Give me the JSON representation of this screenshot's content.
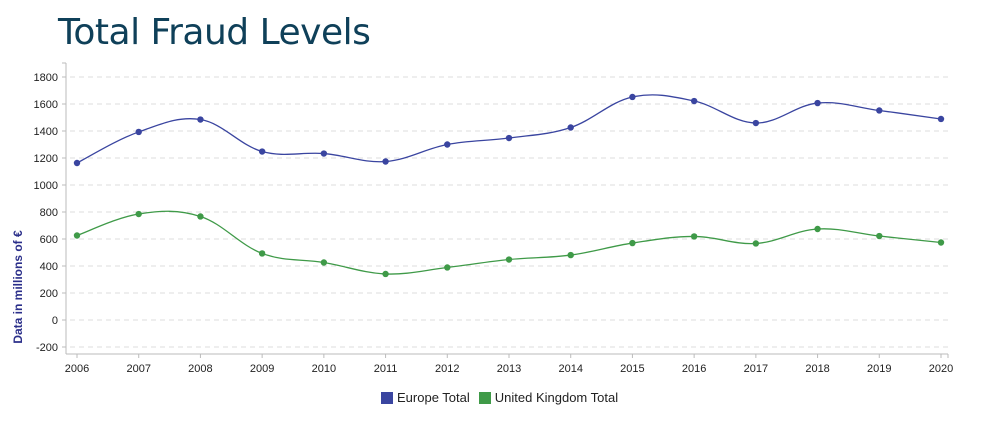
{
  "chart_data": {
    "type": "line",
    "title": "Total Fraud Levels",
    "xlabel": "",
    "ylabel": "Data in millions of €",
    "x": [
      "2006",
      "2007",
      "2008",
      "2009",
      "2010",
      "2011",
      "2012",
      "2013",
      "2014",
      "2015",
      "2016",
      "2017",
      "2018",
      "2019",
      "2020"
    ],
    "yticks": [
      "1800",
      "1600",
      "1400",
      "1200",
      "1000",
      "800",
      "600",
      "400",
      "200",
      "0",
      "-200"
    ],
    "ytick_values": [
      1800,
      1600,
      1400,
      1200,
      1000,
      800,
      600,
      400,
      200,
      0,
      -200
    ],
    "ylim": [
      -250,
      1900
    ],
    "grid": "horizontal-dashed",
    "legend_position": "bottom-center",
    "series": [
      {
        "name": "Europe Total",
        "color": "#3a45a0",
        "values": [
          1163,
          1393,
          1485,
          1248,
          1233,
          1174,
          1300,
          1348,
          1426,
          1652,
          1622,
          1459,
          1607,
          1552,
          1489
        ]
      },
      {
        "name": "United Kingdom Total",
        "color": "#3f9a48",
        "values": [
          626,
          785,
          767,
          493,
          426,
          341,
          389,
          448,
          481,
          570,
          619,
          567,
          674,
          622,
          574
        ]
      }
    ]
  }
}
